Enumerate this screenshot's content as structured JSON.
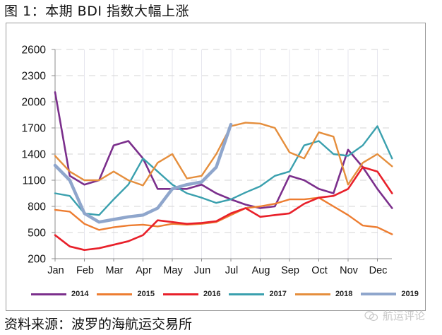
{
  "title": "图 1：本期 BDI 指数大幅上涨",
  "source": "资料来源：波罗的海航运交易所",
  "watermark": {
    "icon": "wechat-icon",
    "text": "航运评论"
  },
  "chart_data": {
    "type": "line",
    "title": "图 1：本期 BDI 指数大幅上涨",
    "xlabel": "",
    "ylabel": "",
    "ylim": [
      200,
      2600
    ],
    "yticks": [
      200,
      500,
      800,
      1100,
      1400,
      1700,
      2000,
      2300,
      2600
    ],
    "categories": [
      "Jan",
      "Feb",
      "Mar",
      "Apr",
      "May",
      "Jun",
      "Jul",
      "Aug",
      "Sep",
      "Oct",
      "Nov",
      "Dec"
    ],
    "x_note": "values sampled semi-monthly; index 0 = early Jan, index 23 = late Dec",
    "grid": {
      "horizontal": "dashed",
      "vertical": "solid-light"
    },
    "legend_position": "bottom",
    "series": [
      {
        "name": "2014",
        "color": "#7b2f8c",
        "width": 2.6,
        "values": [
          2110,
          1150,
          1050,
          1100,
          1500,
          1550,
          1350,
          1000,
          1000,
          1000,
          1050,
          950,
          880,
          820,
          780,
          800,
          1150,
          1100,
          1000,
          950,
          1450,
          1250,
          1000,
          780
        ]
      },
      {
        "name": "2015",
        "color": "#ed7d31",
        "width": 2.4,
        "values": [
          760,
          740,
          600,
          530,
          560,
          580,
          590,
          570,
          600,
          590,
          600,
          620,
          700,
          780,
          800,
          830,
          880,
          880,
          900,
          800,
          700,
          580,
          560,
          480
        ]
      },
      {
        "name": "2016",
        "color": "#e8202a",
        "width": 2.6,
        "values": [
          470,
          340,
          300,
          320,
          360,
          400,
          470,
          640,
          620,
          600,
          610,
          630,
          720,
          780,
          680,
          700,
          720,
          830,
          900,
          920,
          1000,
          1250,
          1200,
          950
        ]
      },
      {
        "name": "2017",
        "color": "#3aa0ae",
        "width": 2.4,
        "values": [
          950,
          920,
          720,
          700,
          880,
          1050,
          1350,
          1200,
          1050,
          950,
          900,
          840,
          880,
          960,
          1030,
          1150,
          1200,
          1500,
          1550,
          1400,
          1380,
          1500,
          1720,
          1350
        ]
      },
      {
        "name": "2018",
        "color": "#e58e3c",
        "width": 2.4,
        "values": [
          1380,
          1200,
          1100,
          1100,
          1200,
          1100,
          1040,
          1300,
          1400,
          1120,
          1150,
          1400,
          1720,
          1760,
          1750,
          1700,
          1420,
          1350,
          1650,
          1600,
          1050,
          1300,
          1400,
          1260
        ]
      },
      {
        "name": "2019",
        "color": "#8fa6cc",
        "width": 4.5,
        "values": [
          1270,
          1100,
          720,
          620,
          650,
          680,
          700,
          780,
          1000,
          1050,
          1080,
          1250,
          1740,
          null,
          null,
          null,
          null,
          null,
          null,
          null,
          null,
          null,
          null,
          null
        ]
      }
    ]
  },
  "legend": [
    {
      "label": "2014",
      "color": "#7b2f8c"
    },
    {
      "label": "2015",
      "color": "#ed7d31"
    },
    {
      "label": "2016",
      "color": "#e8202a"
    },
    {
      "label": "2017",
      "color": "#3aa0ae"
    },
    {
      "label": "2018",
      "color": "#e58e3c"
    },
    {
      "label": "2019",
      "color": "#8fa6cc"
    }
  ]
}
